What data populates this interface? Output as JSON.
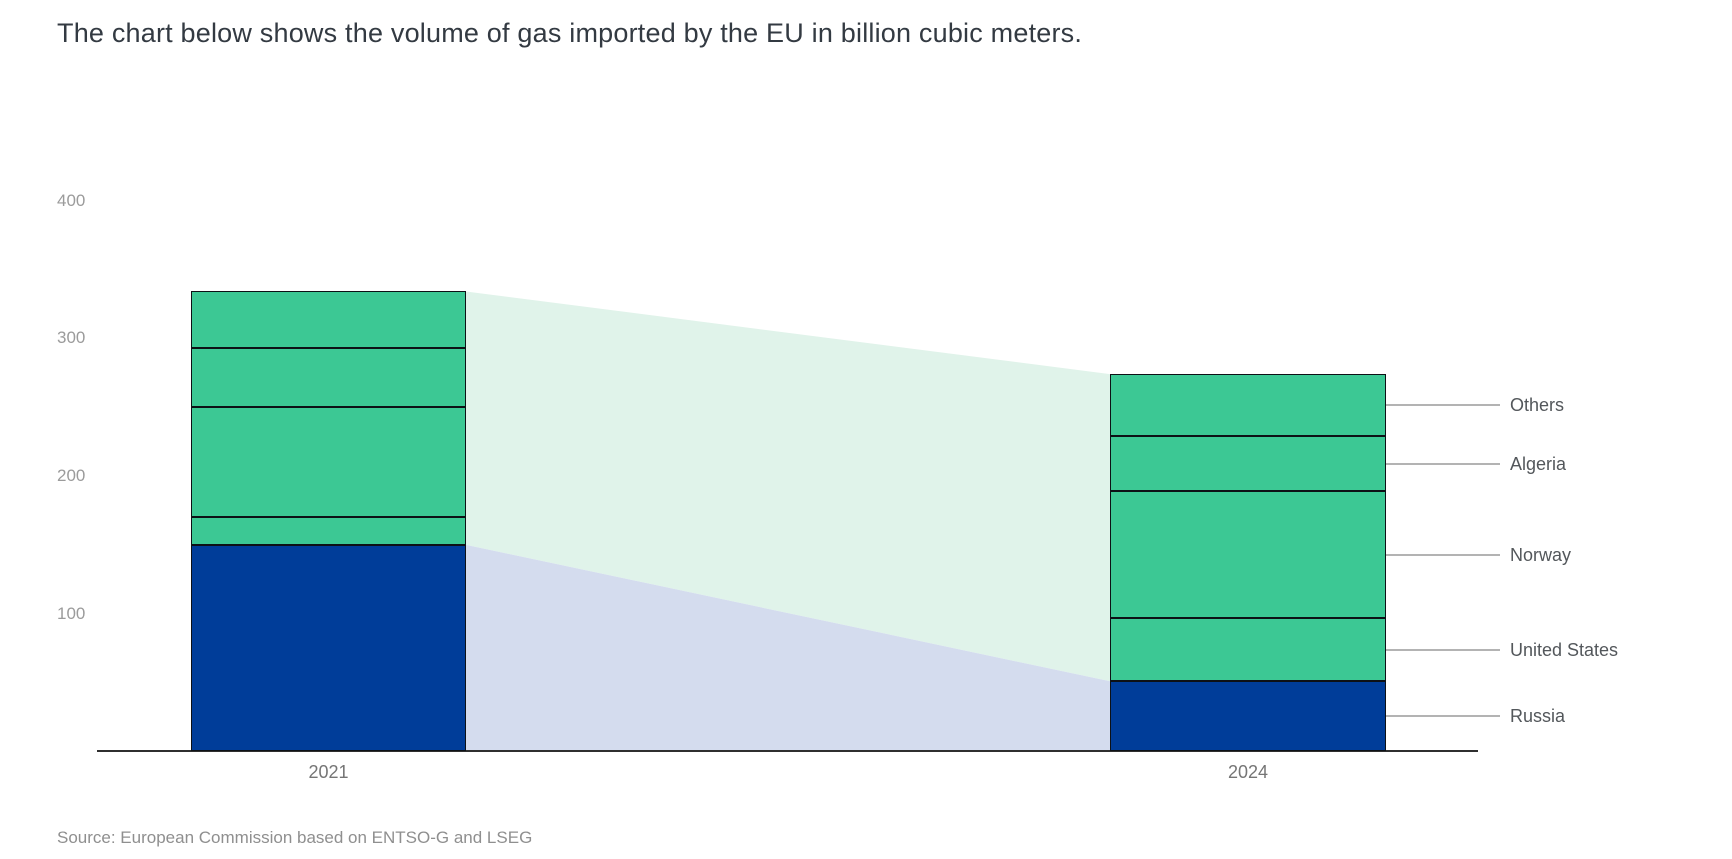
{
  "title": "The chart below shows the volume of gas imported by the EU in billion cubic meters.",
  "source": "Source: European Commission based on ENTSO-G and LSEG",
  "colors": {
    "supplier_green": "#3cc894",
    "russia_blue": "#003d99",
    "flow_band_green": "#e0f3ea",
    "flow_band_lavender": "#d4dcee",
    "segment_border": "#0d1116",
    "axis_line": "#2f2f2f",
    "leader_line": "#b3b3b3"
  },
  "chart_data": {
    "type": "bar",
    "variant": "stacked-columns-with-flow-bands",
    "title": "The chart below shows the volume of gas imported by the EU in billion cubic meters.",
    "unit": "billion cubic meters",
    "categories": [
      "2021",
      "2024"
    ],
    "series": [
      {
        "name": "Russia",
        "values": [
          150,
          51
        ],
        "color": "#003d99"
      },
      {
        "name": "United States",
        "values": [
          20,
          46
        ],
        "color": "#3cc894"
      },
      {
        "name": "Norway",
        "values": [
          80,
          92
        ],
        "color": "#3cc894"
      },
      {
        "name": "Algeria",
        "values": [
          43,
          40
        ],
        "color": "#3cc894"
      },
      {
        "name": "Others",
        "values": [
          41,
          45
        ],
        "color": "#3cc894"
      }
    ],
    "totals": [
      334,
      274
    ],
    "y_axis": {
      "ticks": [
        100,
        200,
        300,
        400
      ],
      "range": [
        0,
        400
      ],
      "gridlines": false
    },
    "x_tick_labels": [
      "2021",
      "2024"
    ],
    "right_labels_top_to_bottom": [
      "Others",
      "Algeria",
      "Norway",
      "United States",
      "Russia"
    ],
    "legend_position": "right-labels-with-leader-lines",
    "flow_bands": {
      "non_russia_color": "#e0f3ea",
      "russia_color": "#d4dcee"
    },
    "source": "Source: European Commission based on ENTSO-G and LSEG"
  }
}
